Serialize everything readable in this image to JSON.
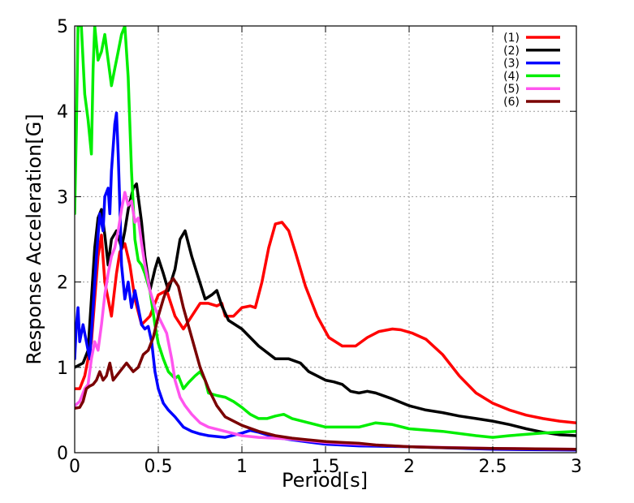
{
  "chart_data": {
    "type": "line",
    "title": "",
    "xlabel": "Period[s]",
    "ylabel": "Response Acceleration[G]",
    "xlim": [
      0,
      3
    ],
    "ylim": [
      0,
      5
    ],
    "x_ticks": [
      0,
      0.5,
      1,
      1.5,
      2,
      2.5,
      3
    ],
    "x_tick_labels": [
      "0",
      "0.5",
      "1",
      "1.5",
      "2",
      "2.5",
      "3"
    ],
    "y_ticks": [
      0,
      1,
      2,
      3,
      4,
      5
    ],
    "y_tick_labels": [
      "0",
      "1",
      "2",
      "3",
      "4",
      "5"
    ],
    "grid": true,
    "legend_position": "top-right",
    "series": [
      {
        "name": "(1)",
        "color": "#ff0000",
        "points": [
          [
            0,
            0.75
          ],
          [
            0.03,
            0.75
          ],
          [
            0.06,
            0.9
          ],
          [
            0.1,
            1.3
          ],
          [
            0.12,
            1.8
          ],
          [
            0.14,
            2.3
          ],
          [
            0.16,
            2.55
          ],
          [
            0.18,
            2.0
          ],
          [
            0.2,
            1.8
          ],
          [
            0.22,
            1.6
          ],
          [
            0.25,
            2.1
          ],
          [
            0.27,
            2.35
          ],
          [
            0.3,
            2.45
          ],
          [
            0.33,
            2.2
          ],
          [
            0.36,
            1.8
          ],
          [
            0.4,
            1.5
          ],
          [
            0.45,
            1.6
          ],
          [
            0.5,
            1.85
          ],
          [
            0.55,
            1.9
          ],
          [
            0.6,
            1.6
          ],
          [
            0.65,
            1.45
          ],
          [
            0.7,
            1.6
          ],
          [
            0.75,
            1.75
          ],
          [
            0.8,
            1.75
          ],
          [
            0.85,
            1.72
          ],
          [
            0.88,
            1.75
          ],
          [
            0.9,
            1.6
          ],
          [
            0.95,
            1.6
          ],
          [
            1.0,
            1.7
          ],
          [
            1.05,
            1.72
          ],
          [
            1.08,
            1.7
          ],
          [
            1.12,
            2.0
          ],
          [
            1.16,
            2.4
          ],
          [
            1.2,
            2.68
          ],
          [
            1.24,
            2.7
          ],
          [
            1.28,
            2.6
          ],
          [
            1.32,
            2.35
          ],
          [
            1.38,
            1.95
          ],
          [
            1.45,
            1.6
          ],
          [
            1.52,
            1.35
          ],
          [
            1.6,
            1.25
          ],
          [
            1.68,
            1.25
          ],
          [
            1.75,
            1.35
          ],
          [
            1.82,
            1.42
          ],
          [
            1.9,
            1.45
          ],
          [
            1.95,
            1.44
          ],
          [
            2.02,
            1.4
          ],
          [
            2.1,
            1.33
          ],
          [
            2.2,
            1.15
          ],
          [
            2.3,
            0.9
          ],
          [
            2.4,
            0.7
          ],
          [
            2.5,
            0.58
          ],
          [
            2.6,
            0.5
          ],
          [
            2.7,
            0.44
          ],
          [
            2.8,
            0.4
          ],
          [
            2.9,
            0.37
          ],
          [
            3.0,
            0.35
          ]
        ]
      },
      {
        "name": "(2)",
        "color": "#000000",
        "points": [
          [
            0,
            1.0
          ],
          [
            0.05,
            1.05
          ],
          [
            0.08,
            1.2
          ],
          [
            0.1,
            1.8
          ],
          [
            0.12,
            2.4
          ],
          [
            0.14,
            2.75
          ],
          [
            0.16,
            2.85
          ],
          [
            0.18,
            2.55
          ],
          [
            0.2,
            2.2
          ],
          [
            0.22,
            2.5
          ],
          [
            0.25,
            2.6
          ],
          [
            0.28,
            2.4
          ],
          [
            0.3,
            2.6
          ],
          [
            0.32,
            2.85
          ],
          [
            0.35,
            3.1
          ],
          [
            0.37,
            3.15
          ],
          [
            0.4,
            2.7
          ],
          [
            0.42,
            2.3
          ],
          [
            0.45,
            1.9
          ],
          [
            0.48,
            2.15
          ],
          [
            0.5,
            2.28
          ],
          [
            0.53,
            2.1
          ],
          [
            0.56,
            1.9
          ],
          [
            0.6,
            2.15
          ],
          [
            0.63,
            2.5
          ],
          [
            0.66,
            2.6
          ],
          [
            0.7,
            2.3
          ],
          [
            0.74,
            2.05
          ],
          [
            0.78,
            1.8
          ],
          [
            0.82,
            1.85
          ],
          [
            0.85,
            1.9
          ],
          [
            0.88,
            1.72
          ],
          [
            0.92,
            1.55
          ],
          [
            1.0,
            1.45
          ],
          [
            1.1,
            1.25
          ],
          [
            1.2,
            1.1
          ],
          [
            1.28,
            1.1
          ],
          [
            1.35,
            1.05
          ],
          [
            1.4,
            0.95
          ],
          [
            1.45,
            0.9
          ],
          [
            1.5,
            0.85
          ],
          [
            1.55,
            0.83
          ],
          [
            1.6,
            0.8
          ],
          [
            1.65,
            0.72
          ],
          [
            1.7,
            0.7
          ],
          [
            1.75,
            0.72
          ],
          [
            1.8,
            0.7
          ],
          [
            1.9,
            0.63
          ],
          [
            2.0,
            0.55
          ],
          [
            2.1,
            0.5
          ],
          [
            2.2,
            0.47
          ],
          [
            2.3,
            0.43
          ],
          [
            2.4,
            0.4
          ],
          [
            2.5,
            0.37
          ],
          [
            2.6,
            0.33
          ],
          [
            2.7,
            0.28
          ],
          [
            2.8,
            0.24
          ],
          [
            2.9,
            0.21
          ],
          [
            3.0,
            0.2
          ]
        ]
      },
      {
        "name": "(3)",
        "color": "#0000ff",
        "points": [
          [
            0,
            1.1
          ],
          [
            0.01,
            1.5
          ],
          [
            0.02,
            1.7
          ],
          [
            0.03,
            1.3
          ],
          [
            0.05,
            1.5
          ],
          [
            0.07,
            1.3
          ],
          [
            0.09,
            1.1
          ],
          [
            0.11,
            1.7
          ],
          [
            0.13,
            2.3
          ],
          [
            0.15,
            2.8
          ],
          [
            0.17,
            2.6
          ],
          [
            0.18,
            3.0
          ],
          [
            0.2,
            3.1
          ],
          [
            0.21,
            2.8
          ],
          [
            0.22,
            3.3
          ],
          [
            0.24,
            3.85
          ],
          [
            0.25,
            3.98
          ],
          [
            0.26,
            3.5
          ],
          [
            0.27,
            2.9
          ],
          [
            0.28,
            2.2
          ],
          [
            0.3,
            1.8
          ],
          [
            0.32,
            2.0
          ],
          [
            0.34,
            1.7
          ],
          [
            0.36,
            1.9
          ],
          [
            0.38,
            1.7
          ],
          [
            0.4,
            1.5
          ],
          [
            0.42,
            1.45
          ],
          [
            0.44,
            1.48
          ],
          [
            0.46,
            1.3
          ],
          [
            0.48,
            0.95
          ],
          [
            0.5,
            0.75
          ],
          [
            0.53,
            0.58
          ],
          [
            0.56,
            0.5
          ],
          [
            0.6,
            0.42
          ],
          [
            0.65,
            0.3
          ],
          [
            0.7,
            0.25
          ],
          [
            0.75,
            0.22
          ],
          [
            0.8,
            0.2
          ],
          [
            0.9,
            0.18
          ],
          [
            1.0,
            0.23
          ],
          [
            1.05,
            0.26
          ],
          [
            1.1,
            0.24
          ],
          [
            1.2,
            0.18
          ],
          [
            1.3,
            0.15
          ],
          [
            1.5,
            0.1
          ],
          [
            1.7,
            0.08
          ],
          [
            2.0,
            0.07
          ],
          [
            2.5,
            0.04
          ],
          [
            3.0,
            0.03
          ]
        ]
      },
      {
        "name": "(4)",
        "color": "#00ee00",
        "points": [
          [
            0,
            2.8
          ],
          [
            0.01,
            3.8
          ],
          [
            0.02,
            5.0
          ],
          [
            0.04,
            5.0
          ],
          [
            0.06,
            4.2
          ],
          [
            0.08,
            3.9
          ],
          [
            0.1,
            3.5
          ],
          [
            0.11,
            4.5
          ],
          [
            0.12,
            5.0
          ],
          [
            0.14,
            4.6
          ],
          [
            0.16,
            4.7
          ],
          [
            0.18,
            4.9
          ],
          [
            0.2,
            4.6
          ],
          [
            0.22,
            4.3
          ],
          [
            0.24,
            4.5
          ],
          [
            0.26,
            4.7
          ],
          [
            0.28,
            4.9
          ],
          [
            0.3,
            5.0
          ],
          [
            0.32,
            4.4
          ],
          [
            0.34,
            3.3
          ],
          [
            0.36,
            2.5
          ],
          [
            0.38,
            2.25
          ],
          [
            0.4,
            2.2
          ],
          [
            0.42,
            2.1
          ],
          [
            0.45,
            1.9
          ],
          [
            0.48,
            1.5
          ],
          [
            0.5,
            1.28
          ],
          [
            0.53,
            1.1
          ],
          [
            0.56,
            0.95
          ],
          [
            0.6,
            0.87
          ],
          [
            0.62,
            0.9
          ],
          [
            0.65,
            0.75
          ],
          [
            0.68,
            0.82
          ],
          [
            0.72,
            0.9
          ],
          [
            0.75,
            0.95
          ],
          [
            0.78,
            0.85
          ],
          [
            0.8,
            0.7
          ],
          [
            0.85,
            0.67
          ],
          [
            0.9,
            0.65
          ],
          [
            0.95,
            0.6
          ],
          [
            1.0,
            0.53
          ],
          [
            1.05,
            0.45
          ],
          [
            1.1,
            0.4
          ],
          [
            1.15,
            0.4
          ],
          [
            1.2,
            0.43
          ],
          [
            1.25,
            0.45
          ],
          [
            1.3,
            0.4
          ],
          [
            1.4,
            0.35
          ],
          [
            1.5,
            0.3
          ],
          [
            1.6,
            0.3
          ],
          [
            1.7,
            0.3
          ],
          [
            1.8,
            0.35
          ],
          [
            1.9,
            0.33
          ],
          [
            2.0,
            0.28
          ],
          [
            2.2,
            0.25
          ],
          [
            2.4,
            0.2
          ],
          [
            2.5,
            0.18
          ],
          [
            2.6,
            0.2
          ],
          [
            2.8,
            0.23
          ],
          [
            3.0,
            0.25
          ]
        ]
      },
      {
        "name": "(5)",
        "color": "#ff55ee",
        "points": [
          [
            0,
            0.55
          ],
          [
            0.03,
            0.6
          ],
          [
            0.06,
            0.75
          ],
          [
            0.08,
            0.8
          ],
          [
            0.1,
            1.1
          ],
          [
            0.12,
            1.3
          ],
          [
            0.14,
            1.2
          ],
          [
            0.16,
            1.5
          ],
          [
            0.18,
            1.85
          ],
          [
            0.2,
            2.1
          ],
          [
            0.22,
            2.3
          ],
          [
            0.24,
            2.4
          ],
          [
            0.26,
            2.6
          ],
          [
            0.28,
            2.85
          ],
          [
            0.3,
            3.05
          ],
          [
            0.32,
            2.9
          ],
          [
            0.34,
            2.95
          ],
          [
            0.36,
            2.7
          ],
          [
            0.38,
            2.75
          ],
          [
            0.4,
            2.45
          ],
          [
            0.42,
            2.2
          ],
          [
            0.45,
            1.9
          ],
          [
            0.48,
            1.7
          ],
          [
            0.5,
            1.6
          ],
          [
            0.55,
            1.4
          ],
          [
            0.58,
            1.1
          ],
          [
            0.6,
            0.85
          ],
          [
            0.63,
            0.65
          ],
          [
            0.66,
            0.55
          ],
          [
            0.7,
            0.45
          ],
          [
            0.75,
            0.35
          ],
          [
            0.8,
            0.3
          ],
          [
            0.9,
            0.25
          ],
          [
            1.0,
            0.2
          ],
          [
            1.1,
            0.18
          ],
          [
            1.2,
            0.17
          ],
          [
            1.3,
            0.16
          ],
          [
            1.4,
            0.14
          ],
          [
            1.5,
            0.12
          ],
          [
            1.7,
            0.1
          ],
          [
            2.0,
            0.07
          ],
          [
            2.5,
            0.05
          ],
          [
            3.0,
            0.04
          ]
        ]
      },
      {
        "name": "(6)",
        "color": "#7a0000",
        "points": [
          [
            0,
            0.52
          ],
          [
            0.03,
            0.53
          ],
          [
            0.05,
            0.6
          ],
          [
            0.07,
            0.75
          ],
          [
            0.09,
            0.78
          ],
          [
            0.11,
            0.8
          ],
          [
            0.13,
            0.85
          ],
          [
            0.15,
            0.95
          ],
          [
            0.17,
            0.85
          ],
          [
            0.19,
            0.9
          ],
          [
            0.21,
            1.05
          ],
          [
            0.23,
            0.85
          ],
          [
            0.25,
            0.9
          ],
          [
            0.27,
            0.95
          ],
          [
            0.29,
            1.0
          ],
          [
            0.31,
            1.05
          ],
          [
            0.33,
            1.0
          ],
          [
            0.35,
            0.95
          ],
          [
            0.38,
            1.0
          ],
          [
            0.41,
            1.15
          ],
          [
            0.44,
            1.2
          ],
          [
            0.47,
            1.35
          ],
          [
            0.5,
            1.6
          ],
          [
            0.53,
            1.8
          ],
          [
            0.56,
            1.97
          ],
          [
            0.59,
            2.04
          ],
          [
            0.62,
            1.95
          ],
          [
            0.65,
            1.7
          ],
          [
            0.7,
            1.35
          ],
          [
            0.75,
            1.0
          ],
          [
            0.8,
            0.75
          ],
          [
            0.85,
            0.55
          ],
          [
            0.9,
            0.42
          ],
          [
            1.0,
            0.32
          ],
          [
            1.1,
            0.25
          ],
          [
            1.2,
            0.2
          ],
          [
            1.3,
            0.17
          ],
          [
            1.4,
            0.15
          ],
          [
            1.5,
            0.13
          ],
          [
            1.6,
            0.12
          ],
          [
            1.7,
            0.11
          ],
          [
            1.8,
            0.09
          ],
          [
            2.0,
            0.07
          ],
          [
            2.2,
            0.06
          ],
          [
            2.5,
            0.05
          ],
          [
            3.0,
            0.04
          ]
        ]
      }
    ]
  }
}
